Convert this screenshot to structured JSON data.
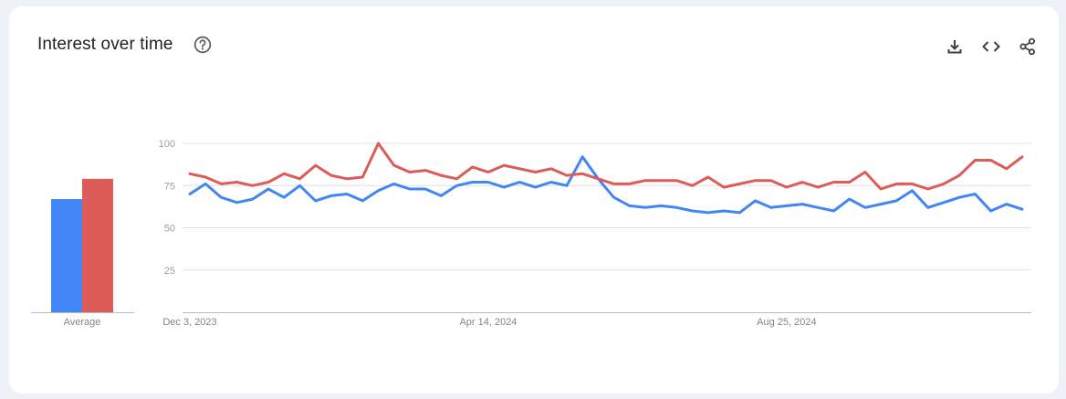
{
  "header": {
    "title": "Interest over time",
    "help_icon": "help-circle-icon",
    "tools": [
      {
        "name": "download-icon"
      },
      {
        "name": "embed-code-icon"
      },
      {
        "name": "share-icon"
      }
    ]
  },
  "colors": {
    "series_1": "#4285f4",
    "series_2": "#db5c58",
    "grid": "#e0e0e0",
    "tick": "#9aa0a6"
  },
  "chart_data": [
    {
      "type": "bar",
      "categories": [
        "Average"
      ],
      "series": [
        {
          "values": [
            67
          ]
        },
        {
          "values": [
            79
          ]
        }
      ],
      "ylim": [
        0,
        100
      ]
    },
    {
      "type": "line",
      "x_tick_labels": [
        "Dec 3, 2023",
        "Apr 14, 2024",
        "Aug 25, 2024"
      ],
      "y_ticks": [
        25,
        50,
        75,
        100
      ],
      "ylim": [
        0,
        100
      ],
      "grid": true,
      "series": [
        {
          "values": [
            70,
            76,
            68,
            65,
            67,
            73,
            68,
            75,
            66,
            69,
            70,
            66,
            72,
            76,
            73,
            73,
            69,
            75,
            77,
            77,
            74,
            77,
            74,
            77,
            75,
            92,
            79,
            68,
            63,
            62,
            63,
            62,
            60,
            59,
            60,
            59,
            66,
            62,
            63,
            64,
            62,
            60,
            67,
            62,
            64,
            66,
            72,
            62,
            65,
            68,
            70,
            60,
            64,
            61
          ]
        },
        {
          "values": [
            82,
            80,
            76,
            77,
            75,
            77,
            82,
            79,
            87,
            81,
            79,
            80,
            100,
            87,
            83,
            84,
            81,
            79,
            86,
            83,
            87,
            85,
            83,
            85,
            81,
            82,
            79,
            76,
            76,
            78,
            78,
            78,
            75,
            80,
            74,
            76,
            78,
            78,
            74,
            77,
            74,
            77,
            77,
            83,
            73,
            76,
            76,
            73,
            76,
            81,
            90,
            90,
            85,
            92
          ]
        }
      ]
    }
  ]
}
